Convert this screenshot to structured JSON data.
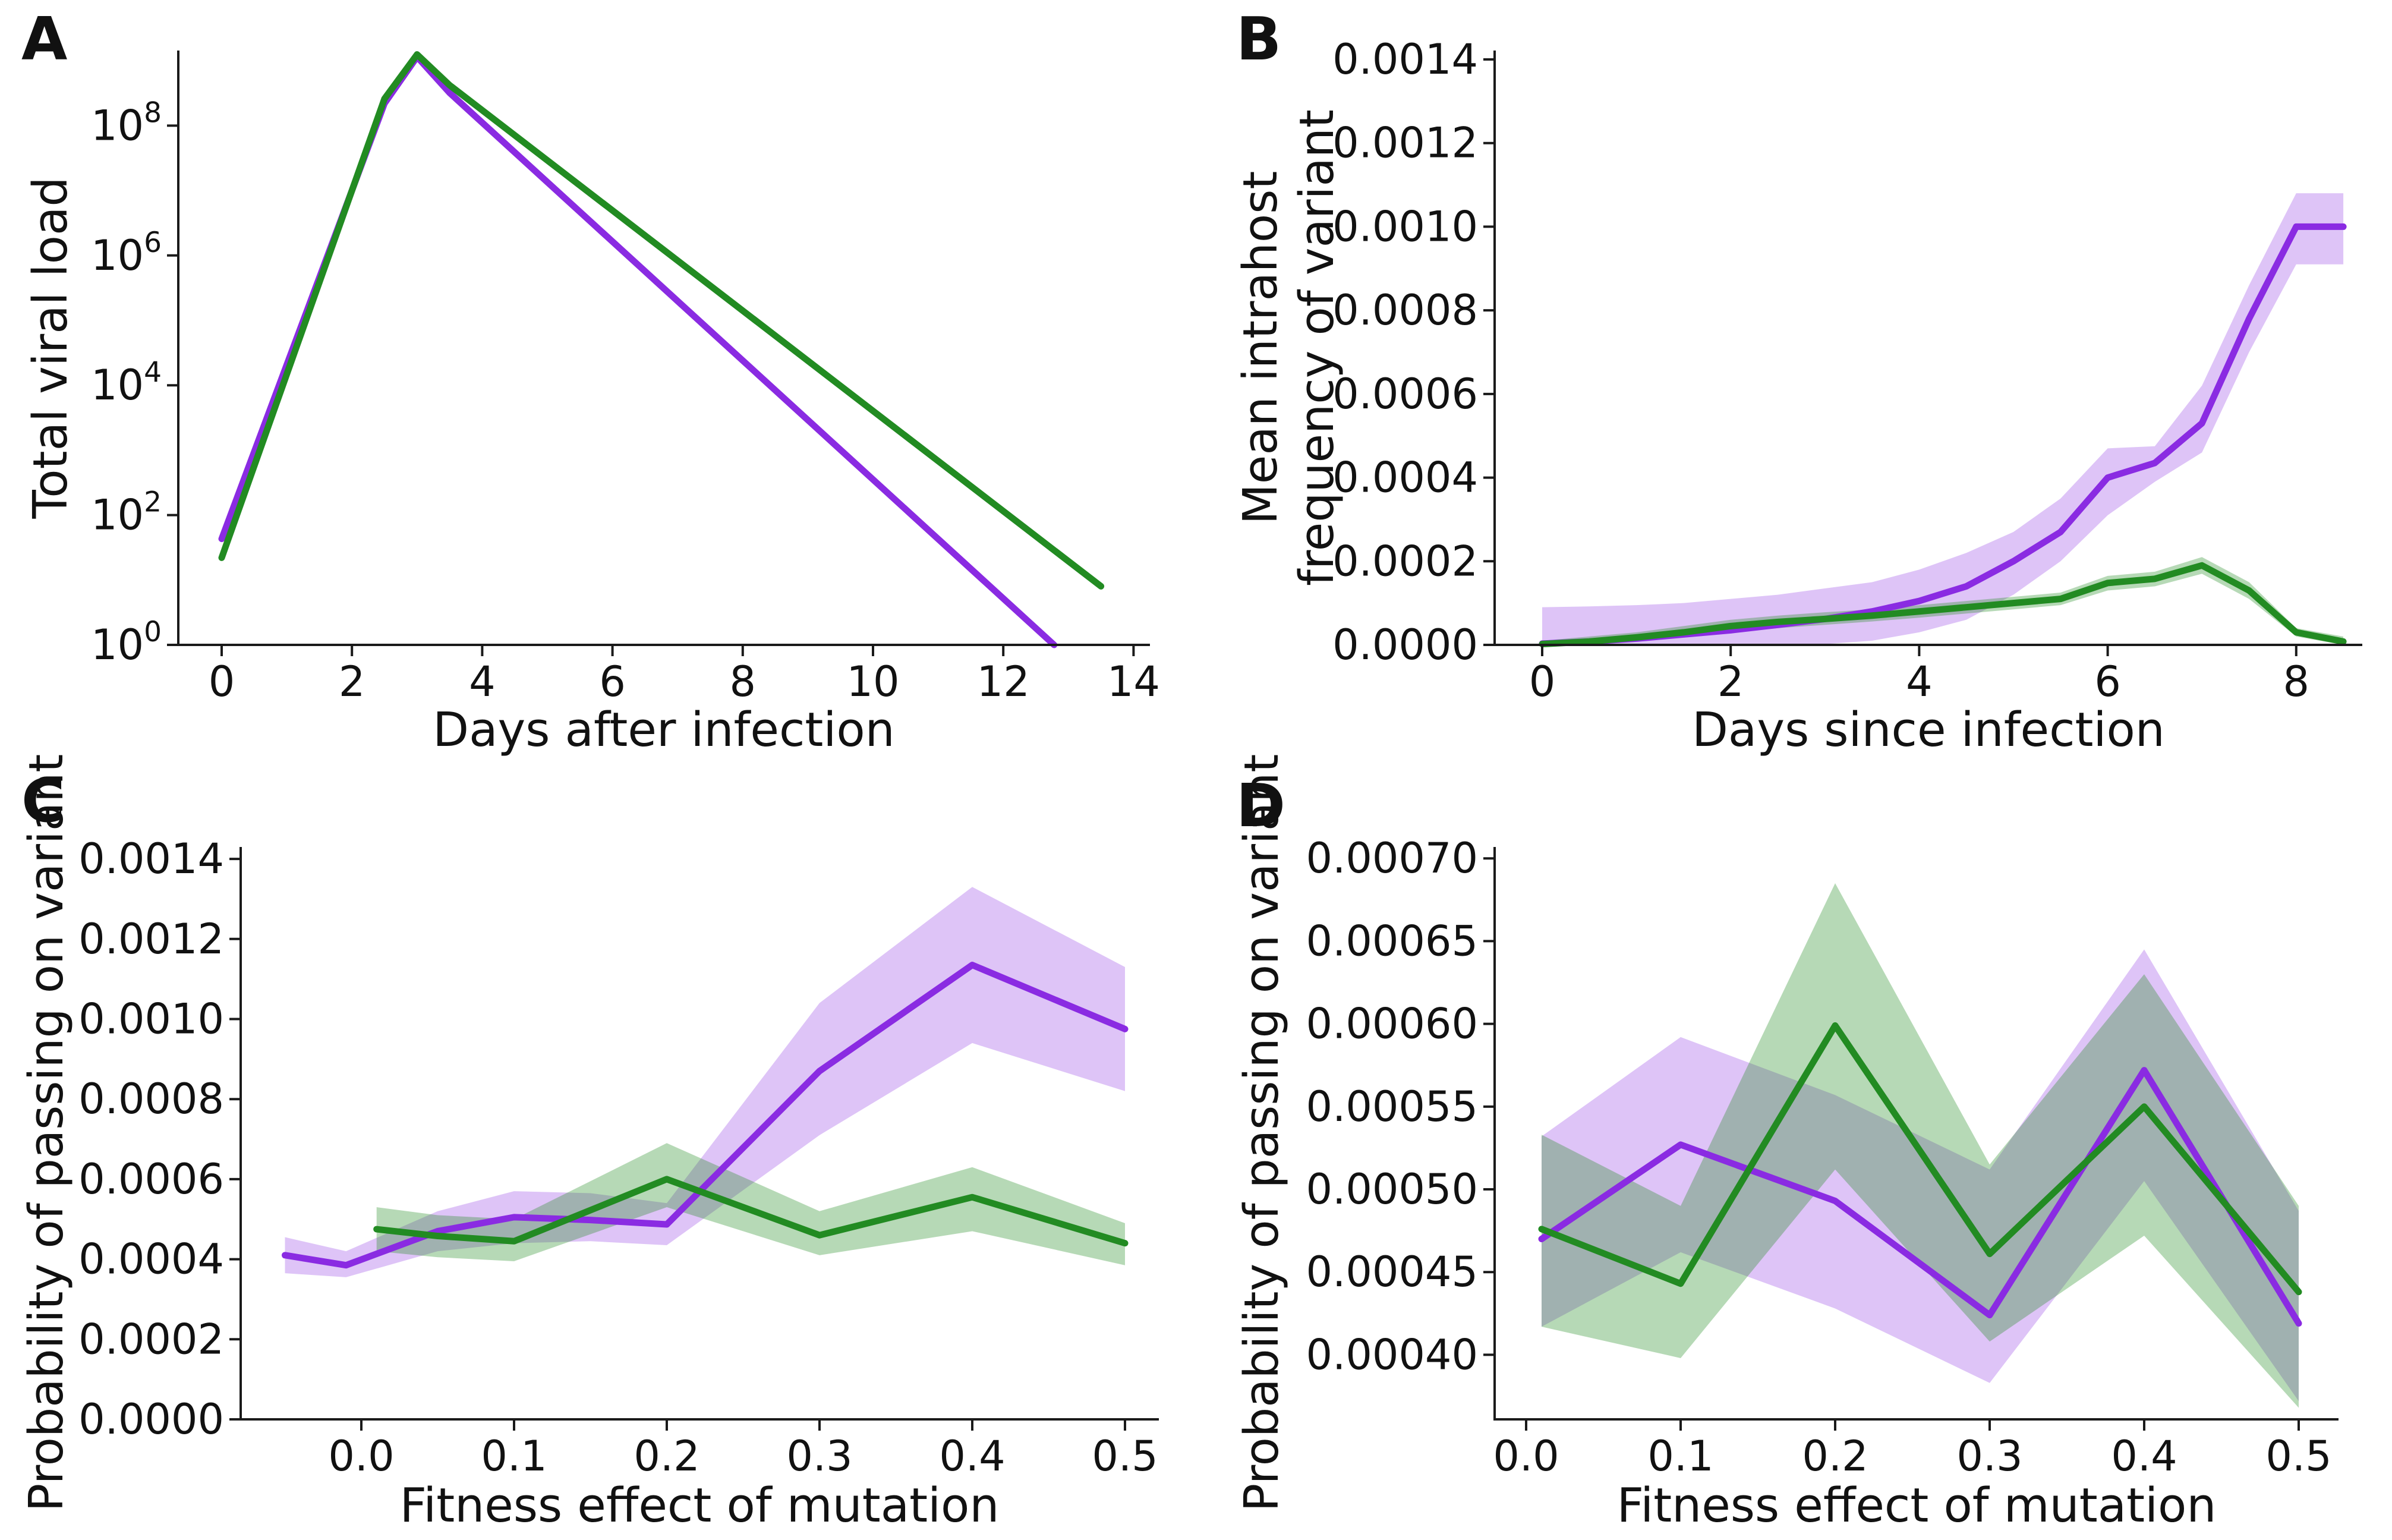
{
  "colors": {
    "purple": "#8A2BE2",
    "green": "#228B22",
    "purple_band": "#8A2BE2",
    "green_band": "#228B22",
    "purple_band_alpha": 0.28,
    "green_band_alpha": 0.33,
    "axis": "#1a1a1a",
    "text": "#111111"
  },
  "figure_title": "",
  "chart_data": [
    {
      "panel": "A",
      "panel_label": "A",
      "type": "line",
      "xlabel": "Days after infection",
      "ylabel": "Total viral load",
      "ylabel_lines": [
        "Total viral load"
      ],
      "yscale": "log",
      "xlim": [
        -0.67,
        14.25
      ],
      "ylim_log10": [
        0,
        9.16
      ],
      "x_ticks": [
        0,
        2,
        4,
        6,
        8,
        10,
        12,
        14
      ],
      "x_tick_labels": [
        "0",
        "2",
        "4",
        "6",
        "8",
        "10",
        "12",
        "14"
      ],
      "y_tick_exponents": [
        "0",
        "2",
        "4",
        "6",
        "8"
      ],
      "y_tick_base": "10",
      "grid": false,
      "legend": "none",
      "series": [
        {
          "name": "purple-strain",
          "color_key": "purple",
          "x": [
            0,
            2.5,
            3,
            3.5,
            12.78
          ],
          "y": [
            43,
            220000000,
            1150000000,
            320000000,
            1.0
          ]
        },
        {
          "name": "green-strain",
          "color_key": "green",
          "x": [
            0,
            2.5,
            3,
            3.5,
            13.5
          ],
          "y": [
            22,
            260000000,
            1250000000,
            420000000,
            8
          ]
        }
      ]
    },
    {
      "panel": "B",
      "panel_label": "B",
      "type": "line",
      "xlabel": "Days since infection",
      "ylabel": "Mean intrahost frequency of variant",
      "ylabel_lines": [
        "Mean intrahost",
        "frequency of variant"
      ],
      "yscale": "linear",
      "xlim": [
        -0.5,
        8.7
      ],
      "ylim": [
        0,
        0.001421
      ],
      "x_ticks": [
        0,
        2,
        4,
        6,
        8
      ],
      "x_tick_labels": [
        "0",
        "2",
        "4",
        "6",
        "8"
      ],
      "y_ticks": [
        0.0,
        0.0002,
        0.0004,
        0.0006,
        0.0008,
        0.001,
        0.0012,
        0.0014
      ],
      "y_tick_labels": [
        "0.0000",
        "0.0002",
        "0.0004",
        "0.0006",
        "0.0008",
        "0.0010",
        "0.0012",
        "0.0014"
      ],
      "grid": false,
      "legend": "none",
      "series": [
        {
          "name": "purple-variant",
          "color_key": "purple",
          "x": [
            0,
            0.5,
            1,
            1.5,
            2,
            2.5,
            3,
            3.5,
            4,
            4.5,
            5,
            5.5,
            6,
            6.5,
            7,
            7.5,
            8,
            8.5
          ],
          "y": [
            3e-06,
            8e-06,
            1.5e-05,
            2.5e-05,
            3.5e-05,
            4.8e-05,
            6.2e-05,
            8e-05,
            0.000105,
            0.00014,
            0.0002,
            0.00027,
            0.0004,
            0.000435,
            0.00053,
            0.00078,
            0.001,
            0.001
          ],
          "band_upper": [
            9e-05,
            9.2e-05,
            9.5e-05,
            0.0001,
            0.00011,
            0.00012,
            0.000135,
            0.00015,
            0.00018,
            0.00022,
            0.00027,
            0.00035,
            0.00047,
            0.000475,
            0.00062,
            0.00086,
            0.00108,
            0.00108
          ],
          "band_lower": [
            0,
            0,
            0,
            0,
            0,
            0,
            2e-06,
            1e-05,
            3e-05,
            6e-05,
            0.00012,
            0.0002,
            0.00031,
            0.00039,
            0.00046,
            0.0007,
            0.00091,
            0.00091
          ]
        },
        {
          "name": "green-variant",
          "color_key": "green",
          "x": [
            0,
            0.5,
            1,
            1.5,
            2,
            2.5,
            3,
            3.5,
            4,
            4.5,
            5,
            5.5,
            6,
            6.5,
            7,
            7.5,
            8,
            8.5
          ],
          "y": [
            2e-06,
            8e-06,
            1.8e-05,
            3e-05,
            4.5e-05,
            5.5e-05,
            6.2e-05,
            7e-05,
            8e-05,
            9e-05,
            0.0001,
            0.00011,
            0.000148,
            0.000158,
            0.00019,
            0.00013,
            3e-05,
            8e-06
          ],
          "band_upper": [
            1e-05,
            2e-05,
            3e-05,
            4.5e-05,
            6e-05,
            7e-05,
            7.8e-05,
            8.5e-05,
            9.5e-05,
            0.000105,
            0.000115,
            0.000125,
            0.000165,
            0.000175,
            0.00021,
            0.00015,
            4e-05,
            2e-05
          ],
          "band_lower": [
            0,
            0,
            8e-06,
            1.8e-05,
            3e-05,
            4e-05,
            4.8e-05,
            5.6e-05,
            6.5e-05,
            7.5e-05,
            8.5e-05,
            9.5e-05,
            0.00013,
            0.00014,
            0.00017,
            0.00011,
            2e-05,
            0
          ]
        }
      ]
    },
    {
      "panel": "C",
      "panel_label": "C",
      "type": "line",
      "xlabel": "Fitness effect of mutation",
      "ylabel": "Probability of passing on variant",
      "ylabel_lines": [
        "Probability of passing on variant"
      ],
      "yscale": "linear",
      "xlim": [
        -0.079,
        0.522
      ],
      "ylim": [
        0,
        0.00143
      ],
      "x_ticks": [
        0.0,
        0.1,
        0.2,
        0.3,
        0.4,
        0.5
      ],
      "x_tick_labels": [
        "0.0",
        "0.1",
        "0.2",
        "0.3",
        "0.4",
        "0.5"
      ],
      "y_ticks": [
        0.0,
        0.0002,
        0.0004,
        0.0006,
        0.0008,
        0.001,
        0.0012,
        0.0014
      ],
      "y_tick_labels": [
        "0.0000",
        "0.0002",
        "0.0004",
        "0.0006",
        "0.0008",
        "0.0010",
        "0.0012",
        "0.0014"
      ],
      "grid": false,
      "legend": "none",
      "series": [
        {
          "name": "purple-variant",
          "color_key": "purple",
          "x": [
            -0.05,
            -0.01,
            0.05,
            0.1,
            0.15,
            0.2,
            0.3,
            0.4,
            0.5
          ],
          "y": [
            0.00041,
            0.000385,
            0.00047,
            0.000505,
            0.000498,
            0.000487,
            0.00087,
            0.001135,
            0.000975
          ],
          "band_upper": [
            0.000455,
            0.00042,
            0.00052,
            0.00057,
            0.000565,
            0.00054,
            0.00104,
            0.00133,
            0.00113
          ],
          "band_lower": [
            0.000365,
            0.000355,
            0.00042,
            0.00044,
            0.000445,
            0.000435,
            0.00071,
            0.00094,
            0.00082
          ]
        },
        {
          "name": "green-variant",
          "color_key": "green",
          "x": [
            0.01,
            0.05,
            0.1,
            0.2,
            0.3,
            0.4,
            0.5
          ],
          "y": [
            0.000475,
            0.000458,
            0.000445,
            0.0006,
            0.00046,
            0.000555,
            0.00044
          ],
          "band_upper": [
            0.00053,
            0.00051,
            0.0005,
            0.00069,
            0.00052,
            0.00063,
            0.00049
          ],
          "band_lower": [
            0.00042,
            0.000405,
            0.000395,
            0.00053,
            0.00041,
            0.00047,
            0.000385
          ]
        }
      ]
    },
    {
      "panel": "D",
      "panel_label": "D",
      "type": "line",
      "xlabel": "Fitness effect of mutation",
      "ylabel": "Probability of passing on variant",
      "ylabel_lines": [
        "Probability of passing on variant"
      ],
      "yscale": "linear",
      "xlim": [
        -0.02,
        0.526
      ],
      "ylim": [
        0.000361,
        0.000707
      ],
      "x_ticks": [
        0.0,
        0.1,
        0.2,
        0.3,
        0.4,
        0.5
      ],
      "x_tick_labels": [
        "0.0",
        "0.1",
        "0.2",
        "0.3",
        "0.4",
        "0.5"
      ],
      "y_ticks": [
        0.0004,
        0.00045,
        0.0005,
        0.00055,
        0.0006,
        0.00065,
        0.0007
      ],
      "y_tick_labels": [
        "0.00040",
        "0.00045",
        "0.00050",
        "0.00055",
        "0.00060",
        "0.00065",
        "0.00070"
      ],
      "grid": false,
      "legend": "none",
      "series": [
        {
          "name": "purple-variant",
          "color_key": "purple",
          "x": [
            0.01,
            0.1,
            0.2,
            0.3,
            0.4,
            0.5
          ],
          "y": [
            0.00047,
            0.000527,
            0.000493,
            0.000424,
            0.000572,
            0.000419
          ],
          "band_upper": [
            0.000532,
            0.000592,
            0.000557,
            0.000512,
            0.000645,
            0.000487
          ],
          "band_lower": [
            0.000417,
            0.000462,
            0.000428,
            0.000383,
            0.000505,
            0.000372
          ]
        },
        {
          "name": "green-variant",
          "color_key": "green",
          "x": [
            0.01,
            0.1,
            0.2,
            0.3,
            0.4,
            0.5
          ],
          "y": [
            0.000476,
            0.000443,
            0.000599,
            0.000461,
            0.00055,
            0.000438
          ],
          "band_upper": [
            0.000533,
            0.00049,
            0.000685,
            0.000515,
            0.00063,
            0.00049
          ],
          "band_lower": [
            0.000417,
            0.000398,
            0.000512,
            0.000408,
            0.000472,
            0.000368
          ]
        }
      ]
    }
  ]
}
